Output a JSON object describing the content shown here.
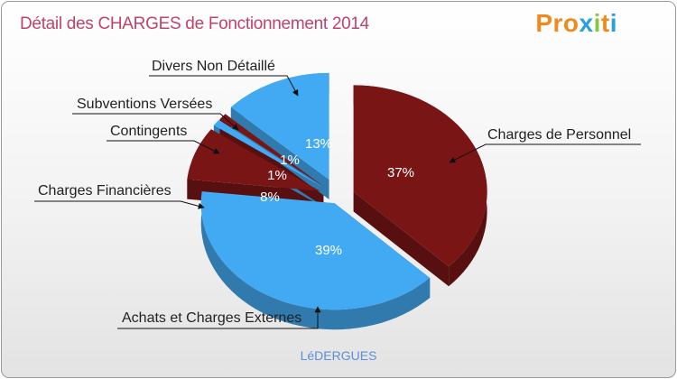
{
  "title": "Détail des CHARGES de Fonctionnement 2014",
  "brand": {
    "letters": [
      "P",
      "r",
      "o",
      "x",
      "i",
      "t",
      "i"
    ],
    "colors": [
      "#f08a1c",
      "#f08a1c",
      "#f08a1c",
      "#2aa1d8",
      "#8bc540",
      "#f08a1c",
      "#2aa1d8"
    ]
  },
  "commune": "LéDERGUES",
  "chart_data": {
    "type": "pie",
    "title": "Détail des CHARGES de Fonctionnement 2014",
    "slices": [
      {
        "label": "Charges de Personnel",
        "value": 37,
        "pct_label": "37%",
        "color": "#7a1515"
      },
      {
        "label": "Achats et Charges Externes",
        "value": 39,
        "pct_label": "39%",
        "color": "#42aaf2"
      },
      {
        "label": "Charges Financières",
        "value": 8,
        "pct_label": "8%",
        "color": "#7a1515"
      },
      {
        "label": "Contingents",
        "value": 1,
        "pct_label": "1%",
        "color": "#42aaf2"
      },
      {
        "label": "Subventions Versées",
        "value": 1,
        "pct_label": "1%",
        "color": "#7a1515"
      },
      {
        "label": "Divers Non Détaillé",
        "value": 13,
        "pct_label": "13%",
        "color": "#42aaf2"
      }
    ]
  }
}
